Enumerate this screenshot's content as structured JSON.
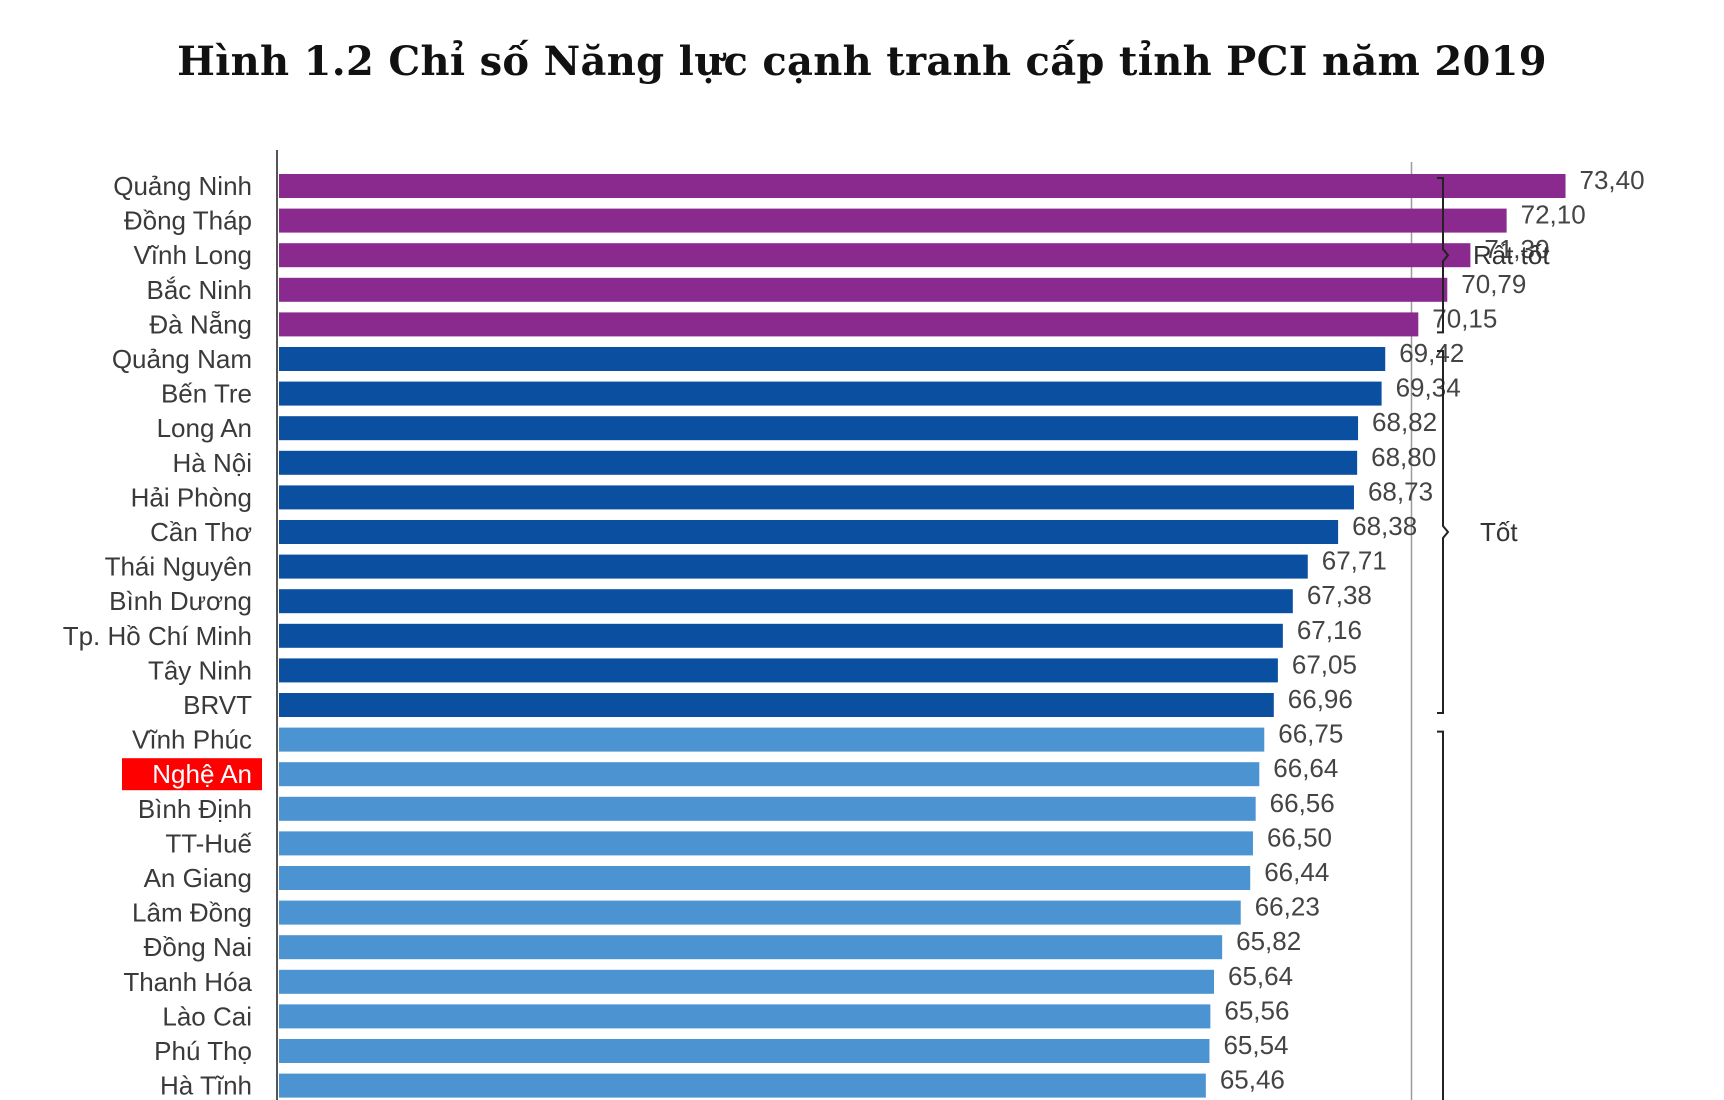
{
  "chart_data": {
    "type": "bar",
    "orientation": "horizontal",
    "title": "Hình 1.2 Chỉ số Năng lực cạnh tranh cấp tỉnh PCI năm 2019",
    "xlabel": "",
    "ylabel": "",
    "xlim": [
      45,
      75
    ],
    "reference_line": 70,
    "grid": false,
    "highlight_category": "Nghệ An",
    "highlight_color": "#ff0000",
    "categories": [
      "Quảng Ninh",
      "Đồng Tháp",
      "Vĩnh Long",
      "Bắc Ninh",
      "Đà Nẵng",
      "Quảng Nam",
      "Bến Tre",
      "Long An",
      "Hà Nội",
      "Hải Phòng",
      "Cần Thơ",
      "Thái Nguyên",
      "Bình Dương",
      "Tp. Hồ Chí Minh",
      "Tây Ninh",
      "BRVT",
      "Vĩnh Phúc",
      "Nghệ An",
      "Bình Định",
      "TT-Huế",
      "An Giang",
      "Lâm Đồng",
      "Đồng Nai",
      "Thanh Hóa",
      "Lào Cai",
      "Phú Thọ",
      "Hà Tĩnh"
    ],
    "values": [
      73.4,
      72.1,
      71.3,
      70.79,
      70.15,
      69.42,
      69.34,
      68.82,
      68.8,
      68.73,
      68.38,
      67.71,
      67.38,
      67.16,
      67.05,
      66.96,
      66.75,
      66.64,
      66.56,
      66.5,
      66.44,
      66.23,
      65.82,
      65.64,
      65.56,
      65.54,
      65.46
    ],
    "value_labels": [
      "73,40",
      "72,10",
      "71,30",
      "70,79",
      "70,15",
      "69,42",
      "69,34",
      "68,82",
      "68,80",
      "68,73",
      "68,38",
      "67,71",
      "67,38",
      "67,16",
      "67,05",
      "66,96",
      "66,75",
      "66,64",
      "66,56",
      "66,50",
      "66,44",
      "66,23",
      "65,82",
      "65,64",
      "65,56",
      "65,54",
      "65,46"
    ],
    "groups": [
      {
        "label": "Rất tốt",
        "start": 0,
        "end": 4,
        "color": "#8a2a8e"
      },
      {
        "label": "Tốt",
        "start": 5,
        "end": 15,
        "color": "#0a4fa0"
      },
      {
        "label": "",
        "start": 16,
        "end": 26,
        "color": "#4b93d1"
      }
    ]
  }
}
